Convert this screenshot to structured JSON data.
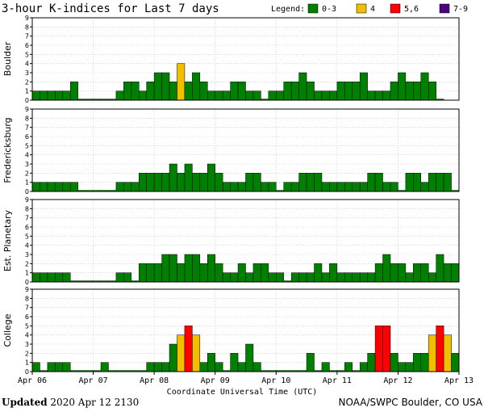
{
  "header": {
    "title": "3-hour K-indices for Last 7 days",
    "legend_label": "Legend:",
    "legend": [
      {
        "label": "0-3",
        "color": "#008000"
      },
      {
        "label": "4",
        "color": "#f0c000"
      },
      {
        "label": "5,6",
        "color": "#ff0000"
      },
      {
        "label": "7-9",
        "color": "#4b0082"
      }
    ]
  },
  "footer": {
    "updated_label": "Updated",
    "updated_value": "2020 Apr 12 2130",
    "source": "NOAA/SWPC Boulder, CO USA"
  },
  "chart_data": {
    "type": "bar",
    "xlabel": "Coordinate Universal Time (UTC)",
    "x_ticks": [
      "Apr 06",
      "Apr 07",
      "Apr 08",
      "Apr 09",
      "Apr 10",
      "Apr 11",
      "Apr 12",
      "Apr 13"
    ],
    "ylim": [
      0,
      9
    ],
    "y_ticks": [
      0,
      1,
      2,
      3,
      4,
      5,
      6,
      7,
      8,
      9
    ],
    "bins_per_day": 8,
    "series": [
      {
        "name": "Boulder",
        "values": [
          1,
          1,
          1,
          1,
          1,
          2,
          0,
          0,
          0,
          0,
          0,
          1,
          2,
          2,
          1,
          2,
          3,
          3,
          2,
          4,
          2,
          3,
          2,
          1,
          1,
          1,
          2,
          2,
          1,
          1,
          0,
          1,
          1,
          2,
          2,
          3,
          2,
          1,
          1,
          1,
          2,
          2,
          2,
          3,
          1,
          1,
          1,
          2,
          3,
          2,
          2,
          3,
          2,
          0
        ]
      },
      {
        "name": "Fredericksburg",
        "values": [
          1,
          1,
          1,
          1,
          1,
          1,
          0,
          0,
          0,
          0,
          0,
          1,
          1,
          1,
          2,
          2,
          2,
          2,
          3,
          2,
          3,
          2,
          2,
          3,
          2,
          1,
          1,
          1,
          2,
          2,
          1,
          1,
          0,
          1,
          1,
          2,
          2,
          2,
          1,
          1,
          1,
          1,
          1,
          1,
          2,
          2,
          1,
          1,
          0,
          2,
          2,
          1,
          2,
          2,
          2,
          0
        ]
      },
      {
        "name": "Est. Planetary",
        "values": [
          1,
          1,
          1,
          1,
          1,
          0,
          0,
          0,
          0,
          0,
          0,
          1,
          1,
          0,
          2,
          2,
          2,
          3,
          3,
          2,
          3,
          3,
          2,
          3,
          2,
          1,
          1,
          2,
          1,
          2,
          2,
          1,
          1,
          0,
          1,
          1,
          1,
          2,
          1,
          2,
          1,
          1,
          1,
          1,
          1,
          2,
          3,
          2,
          2,
          1,
          2,
          2,
          1,
          3,
          2,
          2
        ]
      },
      {
        "name": "College",
        "values": [
          1,
          0,
          1,
          1,
          1,
          0,
          0,
          0,
          0,
          1,
          0,
          0,
          0,
          0,
          0,
          1,
          1,
          1,
          3,
          4,
          5,
          4,
          1,
          2,
          1,
          0,
          2,
          1,
          3,
          1,
          0,
          0,
          0,
          0,
          0,
          0,
          2,
          0,
          1,
          0,
          0,
          1,
          0,
          1,
          2,
          5,
          5,
          2,
          1,
          1,
          2,
          2,
          4,
          5,
          4,
          2,
          0
        ]
      }
    ]
  }
}
